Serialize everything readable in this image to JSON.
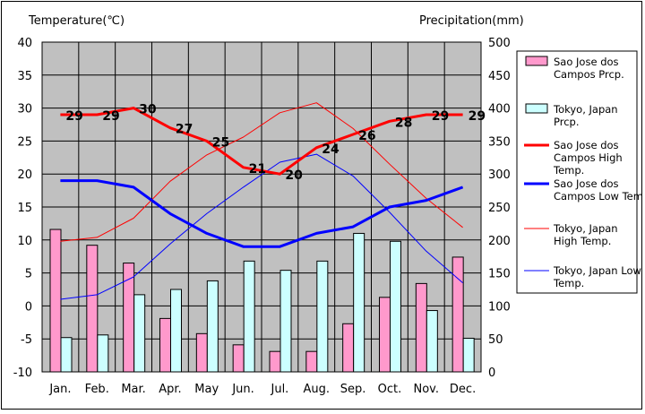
{
  "chart_data": {
    "type": "bar",
    "title": "",
    "categories": [
      "Jan.",
      "Feb.",
      "Mar.",
      "Apr.",
      "May",
      "Jun.",
      "Jul.",
      "Aug.",
      "Sep.",
      "Oct.",
      "Nov.",
      "Dec."
    ],
    "y_left": {
      "label": "Temperature(℃)",
      "range": [
        -10,
        40
      ],
      "ticks": [
        -10,
        -5,
        0,
        5,
        10,
        15,
        20,
        25,
        30,
        35,
        40
      ]
    },
    "y_right": {
      "label": "Precipitation(mm)",
      "range": [
        0,
        500
      ],
      "ticks": [
        0,
        50,
        100,
        150,
        200,
        250,
        300,
        350,
        400,
        450,
        500
      ]
    },
    "plot_background": "#c0c0c0",
    "grid": {
      "horizontal": true,
      "vertical": true
    },
    "legend_position": "right",
    "series": [
      {
        "name": "Sao Jose dos Campos Prcp.",
        "kind": "bar",
        "axis": "right",
        "color": "#ff99cc",
        "values": [
          216,
          192,
          165,
          81,
          58,
          41,
          31,
          31,
          73,
          113,
          134,
          174
        ]
      },
      {
        "name": "Tokyo, Japan Prcp.",
        "kind": "bar",
        "axis": "right",
        "color": "#ccffff",
        "values": [
          52,
          56,
          117,
          125,
          138,
          168,
          154,
          168,
          210,
          198,
          93,
          51
        ]
      },
      {
        "name": "Sao Jose dos Campos High Temp.",
        "kind": "line",
        "axis": "left",
        "color": "#ff0000",
        "width": 3,
        "values": [
          29,
          29,
          30,
          27,
          25,
          21,
          20,
          24,
          26,
          28,
          29,
          29
        ],
        "labels": [
          "29",
          "29",
          "30",
          "27",
          "25",
          "21",
          "20",
          "24",
          "26",
          "28",
          "29",
          "29"
        ]
      },
      {
        "name": "Sao Jose dos Campos Low Temp.",
        "kind": "line",
        "axis": "left",
        "color": "#0000ff",
        "width": 3,
        "values": [
          19,
          19,
          18,
          14,
          11,
          9,
          9,
          11,
          12,
          15,
          16,
          18
        ]
      },
      {
        "name": "Tokyo, Japan High Temp.",
        "kind": "line",
        "axis": "left",
        "color": "#ff0000",
        "width": 1,
        "values": [
          9.8,
          10.4,
          13.3,
          18.9,
          22.9,
          25.6,
          29.3,
          30.8,
          26.9,
          21.5,
          16.3,
          11.9
        ]
      },
      {
        "name": "Tokyo, Japan Low Temp.",
        "kind": "line",
        "axis": "left",
        "color": "#0000ff",
        "width": 1,
        "values": [
          1,
          1.7,
          4.4,
          9.4,
          14,
          18,
          21.8,
          23,
          19.7,
          14.2,
          8.3,
          3.5
        ]
      }
    ]
  }
}
